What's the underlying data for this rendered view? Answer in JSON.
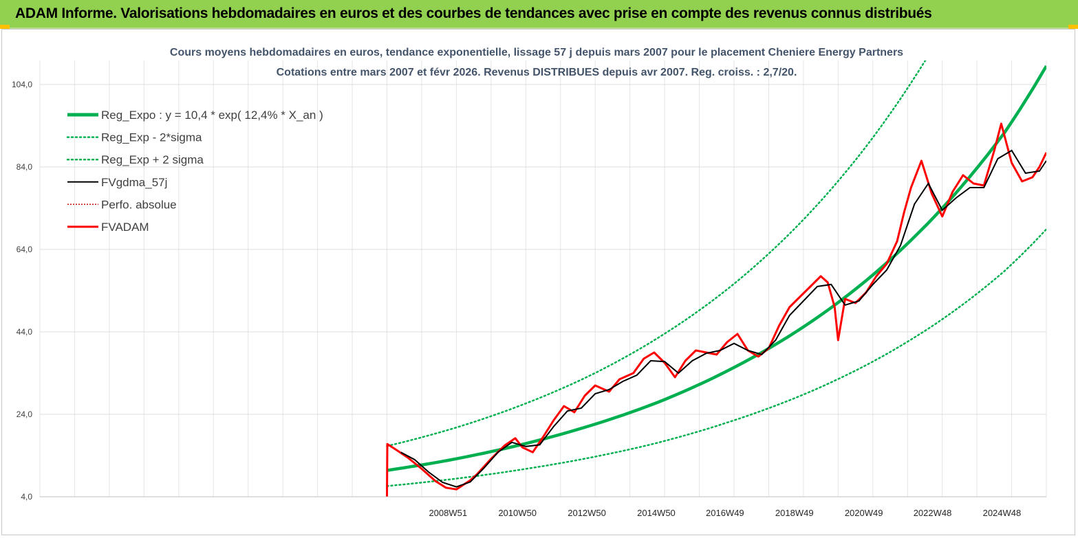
{
  "banner": {
    "title": "ADAM Informe. Valorisations hebdomadaires en euros et des courbes de tendances avec prise en compte des revenus connus distribués"
  },
  "colors": {
    "banner": "#92d050",
    "reg_expo": "#00b050",
    "fvgdma": "#000000",
    "fvadam": "#ff0000",
    "perfo": "#c00000"
  },
  "chart_data": {
    "type": "line",
    "title": [
      "Cours moyens hebdomadaires en euros, tendance exponentielle, lissage 57 j depuis mars 2007 pour le placement Cheniere Energy Partners",
      "Cotations entre mars 2007 et févr 2026. Revenus DISTRIBUES depuis avr 2007. Reg. croiss. : 2,7/20."
    ],
    "xlabel": "",
    "ylabel": "",
    "x_range": [
      1997.2,
      2026.2
    ],
    "ylim": [
      4,
      104
    ],
    "y_ticks": [
      "4,0",
      "24,0",
      "44,0",
      "64,0",
      "84,0",
      "104,0"
    ],
    "y_tick_values": [
      4,
      24,
      44,
      64,
      84,
      104
    ],
    "x_ticks": [
      {
        "label": "2008W51",
        "x": 2008.96
      },
      {
        "label": "2010W50",
        "x": 2010.96
      },
      {
        "label": "2012W50",
        "x": 2012.96
      },
      {
        "label": "2014W50",
        "x": 2014.96
      },
      {
        "label": "2016W49",
        "x": 2016.94
      },
      {
        "label": "2018W49",
        "x": 2018.94
      },
      {
        "label": "2020W49",
        "x": 2020.94
      },
      {
        "label": "2022W48",
        "x": 2022.92
      },
      {
        "label": "2024W48",
        "x": 2024.92
      }
    ],
    "grid": true,
    "legend_position": "top-left",
    "legend": [
      {
        "label": "Reg_Expo : y = 10,4 * exp( 12,4% *  X_an )",
        "key": "reg_expo"
      },
      {
        "label": "Reg_Exp - 2*sigma",
        "key": "reg_minus"
      },
      {
        "label": "Reg_Exp + 2 sigma",
        "key": "reg_plus"
      },
      {
        "label": "FVgdma_57j",
        "key": "fvgdma"
      },
      {
        "label": "Perfo. absolue",
        "key": "perfo"
      },
      {
        "label": "FVADAM",
        "key": "fvadam"
      }
    ],
    "series": [
      {
        "key": "reg_expo",
        "x": [
          2007.2,
          2009,
          2011,
          2013,
          2015,
          2017,
          2019,
          2021,
          2023,
          2025,
          2026.2
        ],
        "values": [
          10.4,
          12.9,
          16.5,
          21.1,
          26.9,
          34.5,
          44.1,
          56.4,
          72.2,
          92.4,
          108.5
        ]
      },
      {
        "key": "reg_minus",
        "x": [
          2007.2,
          2009,
          2011,
          2013,
          2015,
          2017,
          2019,
          2021,
          2023,
          2025,
          2026.2
        ],
        "values": [
          6.6,
          8.2,
          10.5,
          13.4,
          17.1,
          22.0,
          28.1,
          35.9,
          45.9,
          58.8,
          68.9
        ]
      },
      {
        "key": "reg_plus",
        "x": [
          2007.2,
          2009,
          2011,
          2013,
          2015,
          2017,
          2019,
          2021,
          2023,
          2024.1
        ],
        "values": [
          16.3,
          20.3,
          26.0,
          33.2,
          42.5,
          54.3,
          69.5,
          88.9,
          113.8,
          121.0
        ]
      },
      {
        "key": "fvadam",
        "x": [
          2007.2,
          2007.21,
          2007.5,
          2007.8,
          2008.2,
          2008.6,
          2008.9,
          2009.2,
          2009.6,
          2009.8,
          2010.2,
          2010.6,
          2010.9,
          2011.1,
          2011.4,
          2011.7,
          2012.0,
          2012.3,
          2012.6,
          2012.9,
          2013.2,
          2013.6,
          2013.9,
          2014.3,
          2014.6,
          2014.9,
          2015.2,
          2015.5,
          2015.8,
          2016.1,
          2016.4,
          2016.7,
          2017.0,
          2017.3,
          2017.6,
          2017.9,
          2018.2,
          2018.5,
          2018.8,
          2019.1,
          2019.4,
          2019.7,
          2019.9,
          2020.1,
          2020.2,
          2020.4,
          2020.7,
          2021.0,
          2021.3,
          2021.6,
          2021.9,
          2022.1,
          2022.3,
          2022.6,
          2022.9,
          2023.2,
          2023.5,
          2023.8,
          2024.1,
          2024.4,
          2024.7,
          2024.9,
          2025.2,
          2025.5,
          2025.8,
          2026.0,
          2026.2
        ],
        "values": [
          4.0,
          16.8,
          15.2,
          13.5,
          10.8,
          7.8,
          6.2,
          5.8,
          8.0,
          9.5,
          13.2,
          16.5,
          18.2,
          16.0,
          14.8,
          18.5,
          22.5,
          26.0,
          24.5,
          28.5,
          31.0,
          29.5,
          32.5,
          34.0,
          37.5,
          39.0,
          36.5,
          33.0,
          37.0,
          39.5,
          39.0,
          38.5,
          41.5,
          43.5,
          39.5,
          38.0,
          40.0,
          45.5,
          50.0,
          52.5,
          55.0,
          57.5,
          56.0,
          50.0,
          42.0,
          52.0,
          51.0,
          53.5,
          57.5,
          60.5,
          66.0,
          73.0,
          79.0,
          85.5,
          77.5,
          72.0,
          78.0,
          82.0,
          80.0,
          79.5,
          88.0,
          94.5,
          85.0,
          80.5,
          81.5,
          84.0,
          87.5
        ]
      },
      {
        "key": "fvgdma",
        "x": [
          2007.6,
          2008.0,
          2008.4,
          2008.8,
          2009.2,
          2009.6,
          2010.0,
          2010.4,
          2010.8,
          2011.2,
          2011.6,
          2012.0,
          2012.4,
          2012.8,
          2013.2,
          2013.6,
          2014.0,
          2014.4,
          2014.8,
          2015.2,
          2015.6,
          2016.0,
          2016.4,
          2016.8,
          2017.2,
          2017.6,
          2018.0,
          2018.4,
          2018.8,
          2019.2,
          2019.6,
          2020.0,
          2020.4,
          2020.8,
          2021.2,
          2021.6,
          2022.0,
          2022.4,
          2022.8,
          2023.2,
          2023.6,
          2024.0,
          2024.4,
          2024.8,
          2025.2,
          2025.6,
          2026.0,
          2026.2
        ],
        "values": [
          14.8,
          13.0,
          10.0,
          7.5,
          6.4,
          7.6,
          11.0,
          14.8,
          17.2,
          16.2,
          16.6,
          21.0,
          24.8,
          25.5,
          29.0,
          30.0,
          32.0,
          33.5,
          37.0,
          36.8,
          34.0,
          37.0,
          38.8,
          39.5,
          41.2,
          39.5,
          38.5,
          42.0,
          48.0,
          51.5,
          55.0,
          55.5,
          50.5,
          51.5,
          55.5,
          59.0,
          65.0,
          75.0,
          80.0,
          73.5,
          76.5,
          79.0,
          79.0,
          86.0,
          88.0,
          82.5,
          83.0,
          85.5
        ]
      }
    ]
  }
}
